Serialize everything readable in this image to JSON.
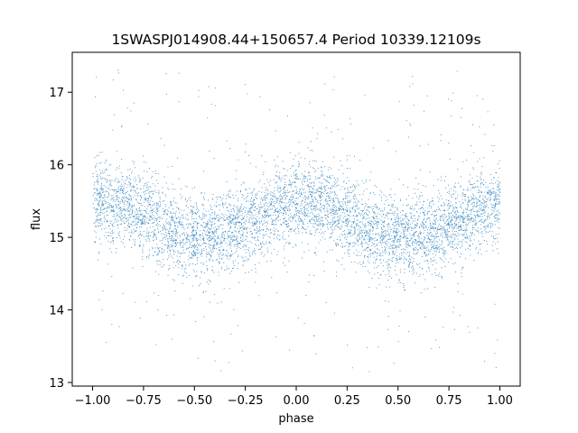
{
  "chart_data": {
    "type": "scatter",
    "title": "1SWASPJ014908.44+150657.4 Period 10339.12109s",
    "xlabel": "phase",
    "ylabel": "flux",
    "xlim": [
      -1.1,
      1.1
    ],
    "ylim": [
      12.95,
      17.55
    ],
    "xticks": [
      -1.0,
      -0.75,
      -0.5,
      -0.25,
      0.0,
      0.25,
      0.5,
      0.75,
      1.0
    ],
    "xtick_labels": [
      "−1.00",
      "−0.75",
      "−0.50",
      "−0.25",
      "0.00",
      "0.25",
      "0.50",
      "0.75",
      "1.00"
    ],
    "yticks": [
      13,
      14,
      15,
      16,
      17
    ],
    "ytick_labels": [
      "13",
      "14",
      "15",
      "16",
      "17"
    ],
    "grid": false,
    "point_color": "#1f77b4",
    "series": [
      {
        "x": [
          -1.0,
          -0.95,
          -0.9,
          -0.85,
          -0.8,
          -0.75,
          -0.7,
          -0.65,
          -0.6,
          -0.55,
          -0.5,
          -0.45,
          -0.4,
          -0.35,
          -0.3,
          -0.25,
          -0.2,
          -0.15,
          -0.1,
          -0.05,
          0.0,
          0.05,
          0.1,
          0.15,
          0.2,
          0.25,
          0.3,
          0.35,
          0.4,
          0.45,
          0.5,
          0.55,
          0.6,
          0.65,
          0.7,
          0.75,
          0.8,
          0.85,
          0.9,
          0.95,
          1.0
        ],
        "y_center": [
          15.45,
          15.5,
          15.5,
          15.47,
          15.4,
          15.32,
          15.25,
          15.17,
          15.1,
          15.05,
          15.02,
          15.0,
          15.02,
          15.05,
          15.1,
          15.18,
          15.27,
          15.35,
          15.42,
          15.47,
          15.5,
          15.5,
          15.47,
          15.42,
          15.35,
          15.28,
          15.2,
          15.12,
          15.06,
          15.02,
          15.0,
          15.0,
          15.02,
          15.05,
          15.1,
          15.17,
          15.25,
          15.32,
          15.4,
          15.45,
          15.48
        ],
        "y_scatter": 0.28,
        "outlier_range": [
          13.15,
          17.35
        ]
      }
    ]
  }
}
